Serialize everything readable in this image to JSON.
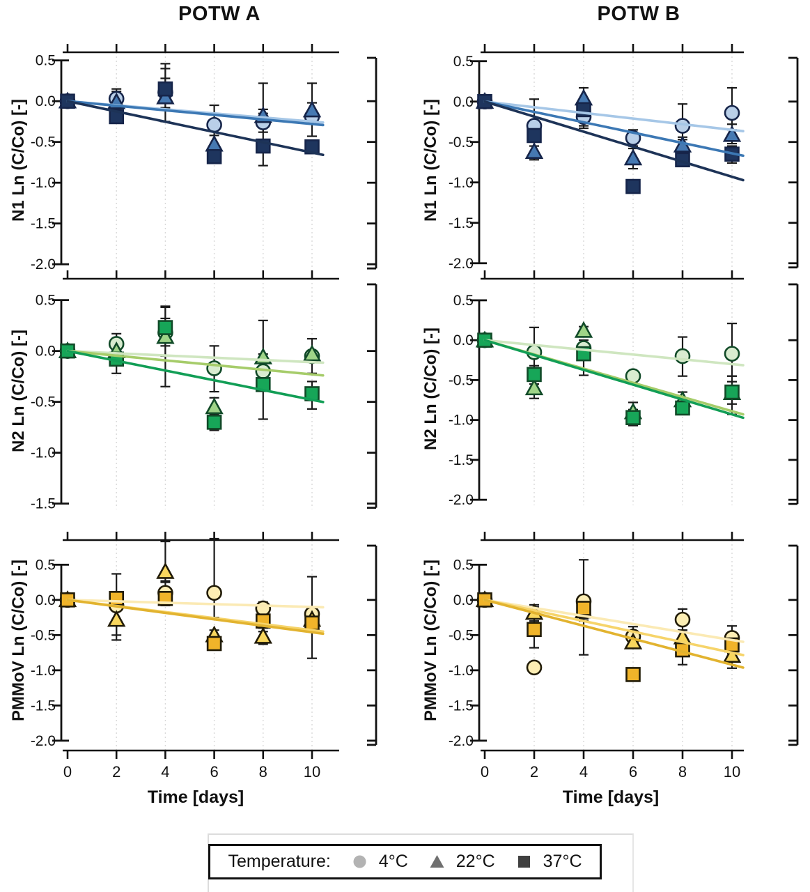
{
  "titles": {
    "potw_a": "POTW A",
    "potw_b": "POTW B"
  },
  "xlabel": "Time [days]",
  "legend": {
    "label": "Temperature:",
    "items": [
      {
        "symbol": "circle",
        "label": "4°C",
        "color": "#b3b3b3"
      },
      {
        "symbol": "triangle",
        "label": "22°C",
        "color": "#6f6f6f"
      },
      {
        "symbol": "square",
        "label": "37°C",
        "color": "#3f3f3f"
      }
    ]
  },
  "colors": {
    "N1": {
      "fill4": "#b9cfe8",
      "fill22": "#4679b2",
      "fill37": "#1e355e",
      "line4": "#a6c7e7",
      "line22": "#3c78b4",
      "line37": "#1d3357",
      "stroke": "#16254a"
    },
    "N2": {
      "fill4": "#d9ecd0",
      "fill22": "#9fd488",
      "fill37": "#17a658",
      "line4": "#cfe6c0",
      "line22": "#a6cc6a",
      "line37": "#129e56",
      "stroke": "#114a28"
    },
    "PMMoV": {
      "fill4": "#fdeeb4",
      "fill22": "#f9d75e",
      "fill37": "#f0b42a",
      "line4": "#fbeab4",
      "line22": "#f6d46a",
      "line37": "#e2b32f",
      "stroke": "#211b07"
    }
  },
  "chart_data": [
    {
      "id": "POTW-A-N1",
      "type": "scatter",
      "column": "POTW A",
      "target": "N1",
      "ylabel": "N1 Ln (C/Co) [-]",
      "xticks": [
        0,
        2,
        4,
        6,
        8,
        10
      ],
      "yticks": [
        0.5,
        0.0,
        -0.5,
        -1.0,
        -1.5,
        -2.0
      ],
      "series": [
        {
          "name": "4°C",
          "temp": "4",
          "symbol": "circle",
          "fit_end": -0.25,
          "points": [
            [
              0,
              0
            ],
            [
              2,
              0.03,
              -0.1,
              0.15
            ],
            [
              4,
              0.11,
              -0.08,
              0.4
            ],
            [
              6,
              -0.29,
              -0.55,
              -0.05
            ],
            [
              8,
              -0.26,
              -0.38,
              -0.15
            ],
            [
              10,
              -0.19,
              -0.43,
              0.22
            ]
          ]
        },
        {
          "name": "22°C",
          "temp": "22",
          "symbol": "triangle",
          "fit_end": -0.28,
          "points": [
            [
              0,
              0
            ],
            [
              2,
              -0.01,
              -0.12,
              0.12
            ],
            [
              4,
              0.05,
              -0.25,
              0.46
            ],
            [
              6,
              -0.53,
              -0.57,
              -0.42
            ],
            [
              8,
              -0.18,
              -0.3,
              -0.1
            ],
            [
              10,
              -0.11,
              -0.2,
              -0.02
            ]
          ]
        },
        {
          "name": "37°C",
          "temp": "37",
          "symbol": "square",
          "fit_end": -0.63,
          "points": [
            [
              0,
              0
            ],
            [
              2,
              -0.19,
              -0.26,
              -0.12
            ],
            [
              4,
              0.15,
              0.02,
              0.28
            ],
            [
              6,
              -0.68
            ],
            [
              8,
              -0.55,
              -0.79,
              0.22
            ],
            [
              10,
              -0.56
            ]
          ]
        }
      ]
    },
    {
      "id": "POTW-B-N1",
      "type": "scatter",
      "column": "POTW B",
      "target": "N1",
      "ylabel": "N1 Ln (C/Co) [-]",
      "xticks": [
        0,
        2,
        4,
        6,
        8,
        10
      ],
      "yticks": [
        0.5,
        0.0,
        -0.5,
        -1.0,
        -1.5,
        -2.0
      ],
      "series": [
        {
          "name": "4°C",
          "temp": "4",
          "symbol": "circle",
          "fit_end": -0.35,
          "points": [
            [
              0,
              0
            ],
            [
              2,
              -0.3,
              -0.45,
              0.03
            ],
            [
              4,
              -0.19,
              -0.3,
              -0.08
            ],
            [
              6,
              -0.45,
              -0.55,
              -0.35
            ],
            [
              8,
              -0.3,
              -0.47,
              -0.03
            ],
            [
              10,
              -0.14,
              -0.35,
              0.17
            ]
          ]
        },
        {
          "name": "22°C",
          "temp": "22",
          "symbol": "triangle",
          "fit_end": -0.64,
          "points": [
            [
              0,
              0
            ],
            [
              2,
              -0.62,
              -0.72,
              -0.5
            ],
            [
              4,
              0.04,
              -0.08,
              0.17
            ],
            [
              6,
              -0.7,
              -0.83,
              -0.58
            ],
            [
              8,
              -0.54,
              -0.64,
              -0.44
            ],
            [
              10,
              -0.41,
              -0.52,
              -0.28
            ]
          ]
        },
        {
          "name": "37°C",
          "temp": "37",
          "symbol": "square",
          "fit_end": -0.93,
          "points": [
            [
              0,
              0
            ],
            [
              2,
              -0.42,
              -0.55,
              -0.3
            ],
            [
              4,
              -0.1,
              -0.33,
              0.0
            ],
            [
              6,
              -1.05
            ],
            [
              8,
              -0.72,
              -0.79,
              -0.62
            ],
            [
              10,
              -0.65,
              -0.76,
              -0.55
            ]
          ]
        }
      ]
    },
    {
      "id": "POTW-A-N2",
      "type": "scatter",
      "column": "POTW A",
      "target": "N2",
      "ylabel": "N2 Ln (C/Co) [-]",
      "xticks": [
        0,
        2,
        4,
        6,
        8,
        10
      ],
      "yticks": [
        0.5,
        0.0,
        -0.5,
        -1.0,
        -1.5
      ],
      "series": [
        {
          "name": "4°C",
          "temp": "4",
          "symbol": "circle",
          "fit_end": -0.11,
          "points": [
            [
              0,
              0
            ],
            [
              2,
              0.07,
              -0.05,
              0.17
            ],
            [
              4,
              0.18,
              0.05,
              0.32
            ],
            [
              6,
              -0.17,
              -0.4,
              0.05
            ],
            [
              8,
              -0.2,
              -0.33,
              -0.08
            ],
            [
              10,
              -0.05,
              -0.22,
              0.12
            ]
          ]
        },
        {
          "name": "22°C",
          "temp": "22",
          "symbol": "triangle",
          "fit_end": -0.23,
          "points": [
            [
              0,
              0
            ],
            [
              2,
              0.0
            ],
            [
              4,
              0.14,
              -0.35,
              0.44
            ],
            [
              6,
              -0.55,
              -0.64,
              -0.46
            ],
            [
              8,
              -0.06,
              -0.09,
              -0.03
            ],
            [
              10,
              -0.03
            ]
          ]
        },
        {
          "name": "37°C",
          "temp": "37",
          "symbol": "square",
          "fit_end": -0.48,
          "points": [
            [
              0,
              0
            ],
            [
              2,
              -0.08,
              -0.22,
              0.02
            ],
            [
              4,
              0.23,
              -0.05,
              0.43
            ],
            [
              6,
              -0.7,
              -0.78,
              -0.62
            ],
            [
              8,
              -0.33,
              -0.67,
              0.3
            ],
            [
              10,
              -0.42,
              -0.57,
              -0.3
            ]
          ]
        }
      ]
    },
    {
      "id": "POTW-B-N2",
      "type": "scatter",
      "column": "POTW B",
      "target": "N2",
      "ylabel": "N2 Ln (C/Co) [-]",
      "xticks": [
        0,
        2,
        4,
        6,
        8,
        10
      ],
      "yticks": [
        0.5,
        0.0,
        -0.5,
        -1.0,
        -1.5,
        -2.0
      ],
      "series": [
        {
          "name": "4°C",
          "temp": "4",
          "symbol": "circle",
          "fit_end": -0.3,
          "points": [
            [
              0,
              0
            ],
            [
              2,
              -0.15,
              -0.4,
              0.16
            ],
            [
              4,
              -0.1,
              -0.2,
              0.0
            ],
            [
              6,
              -0.45
            ],
            [
              8,
              -0.2,
              -0.45,
              0.04
            ],
            [
              10,
              -0.17,
              -0.45,
              0.21
            ]
          ]
        },
        {
          "name": "22°C",
          "temp": "22",
          "symbol": "triangle",
          "fit_end": -0.89,
          "points": [
            [
              0,
              0
            ],
            [
              2,
              -0.6,
              -0.73,
              -0.48
            ],
            [
              4,
              0.12,
              0.05,
              0.17
            ],
            [
              6,
              -0.9,
              -1.0,
              -0.78
            ],
            [
              8,
              -0.75,
              -0.85,
              -0.65
            ],
            [
              10,
              -0.66,
              -0.8,
              -0.52
            ]
          ]
        },
        {
          "name": "37°C",
          "temp": "37",
          "symbol": "square",
          "fit_end": -0.93,
          "points": [
            [
              0,
              0
            ],
            [
              2,
              -0.43,
              -0.55,
              -0.32
            ],
            [
              4,
              -0.17,
              -0.44,
              -0.05
            ],
            [
              6,
              -0.97,
              -1.07,
              -0.87
            ],
            [
              8,
              -0.85,
              -0.93,
              -0.77
            ],
            [
              10,
              -0.65,
              -0.93,
              -0.45
            ]
          ]
        }
      ]
    },
    {
      "id": "POTW-A-PMMoV",
      "type": "scatter",
      "column": "POTW A",
      "target": "PMMoV",
      "ylabel": "PMMoV Ln (C/Co) [-]",
      "xticks": [
        0,
        2,
        4,
        6,
        8,
        10
      ],
      "yticks": [
        0.5,
        0.0,
        -0.5,
        -1.0,
        -1.5,
        -2.0
      ],
      "series": [
        {
          "name": "4°C",
          "temp": "4",
          "symbol": "circle",
          "fit_end": -0.1,
          "points": [
            [
              0,
              0
            ],
            [
              2,
              -0.08,
              -0.5,
              0.37
            ],
            [
              4,
              0.1,
              -0.05,
              0.27
            ],
            [
              6,
              0.1,
              -0.25,
              0.87
            ],
            [
              8,
              -0.12,
              -0.22,
              -0.03
            ],
            [
              10,
              -0.2,
              -0.83,
              0.33
            ]
          ]
        },
        {
          "name": "22°C",
          "temp": "22",
          "symbol": "triangle",
          "fit_end": -0.43,
          "points": [
            [
              0,
              0
            ],
            [
              2,
              -0.28,
              -0.57,
              -0.1
            ],
            [
              4,
              0.4,
              0.25,
              0.83
            ],
            [
              6,
              -0.5,
              -0.57,
              -0.43
            ],
            [
              8,
              -0.52,
              -0.63,
              -0.4
            ],
            [
              10,
              -0.28
            ]
          ]
        },
        {
          "name": "37°C",
          "temp": "37",
          "symbol": "square",
          "fit_end": -0.46,
          "points": [
            [
              0,
              0
            ],
            [
              2,
              0.02,
              -0.05,
              0.08
            ],
            [
              4,
              0.02,
              -0.08,
              0.1
            ],
            [
              6,
              -0.62,
              -0.68,
              -0.55
            ],
            [
              8,
              -0.3,
              -0.45,
              -0.22
            ],
            [
              10,
              -0.33,
              -0.42,
              -0.25
            ]
          ]
        }
      ]
    },
    {
      "id": "POTW-B-PMMoV",
      "type": "scatter",
      "column": "POTW B",
      "target": "PMMoV",
      "ylabel": "PMMoV Ln (C/Co) [-]",
      "xticks": [
        0,
        2,
        4,
        6,
        8,
        10
      ],
      "yticks": [
        0.5,
        0.0,
        -0.5,
        -1.0,
        -1.5,
        -2.0
      ],
      "series": [
        {
          "name": "4°C",
          "temp": "4",
          "symbol": "circle",
          "fit_end": -0.57,
          "points": [
            [
              0,
              0
            ],
            [
              2,
              -0.96,
              -1.02,
              -0.9
            ],
            [
              4,
              -0.02,
              -0.3,
              0.57
            ],
            [
              6,
              -0.52,
              -0.62,
              -0.38
            ],
            [
              8,
              -0.28,
              -0.43,
              -0.13
            ],
            [
              10,
              -0.54,
              -0.7,
              -0.37
            ]
          ]
        },
        {
          "name": "22°C",
          "temp": "22",
          "symbol": "triangle",
          "fit_end": -0.75,
          "points": [
            [
              0,
              0
            ],
            [
              2,
              -0.18,
              -0.3,
              -0.07
            ],
            [
              4,
              -0.16,
              -0.27,
              -0.05
            ],
            [
              6,
              -0.6,
              -0.67,
              -0.52
            ],
            [
              8,
              -0.53,
              -0.63,
              -0.43
            ],
            [
              10,
              -0.79,
              -0.97,
              -0.65
            ]
          ]
        },
        {
          "name": "37°C",
          "temp": "37",
          "symbol": "square",
          "fit_end": -0.92,
          "points": [
            [
              0,
              0
            ],
            [
              2,
              -0.42,
              -0.68,
              -0.1
            ],
            [
              4,
              -0.12,
              -0.78,
              0.0
            ],
            [
              6,
              -1.06
            ],
            [
              8,
              -0.71,
              -0.92,
              -0.58
            ],
            [
              10,
              -0.64,
              -0.76,
              -0.52
            ]
          ]
        }
      ]
    }
  ]
}
